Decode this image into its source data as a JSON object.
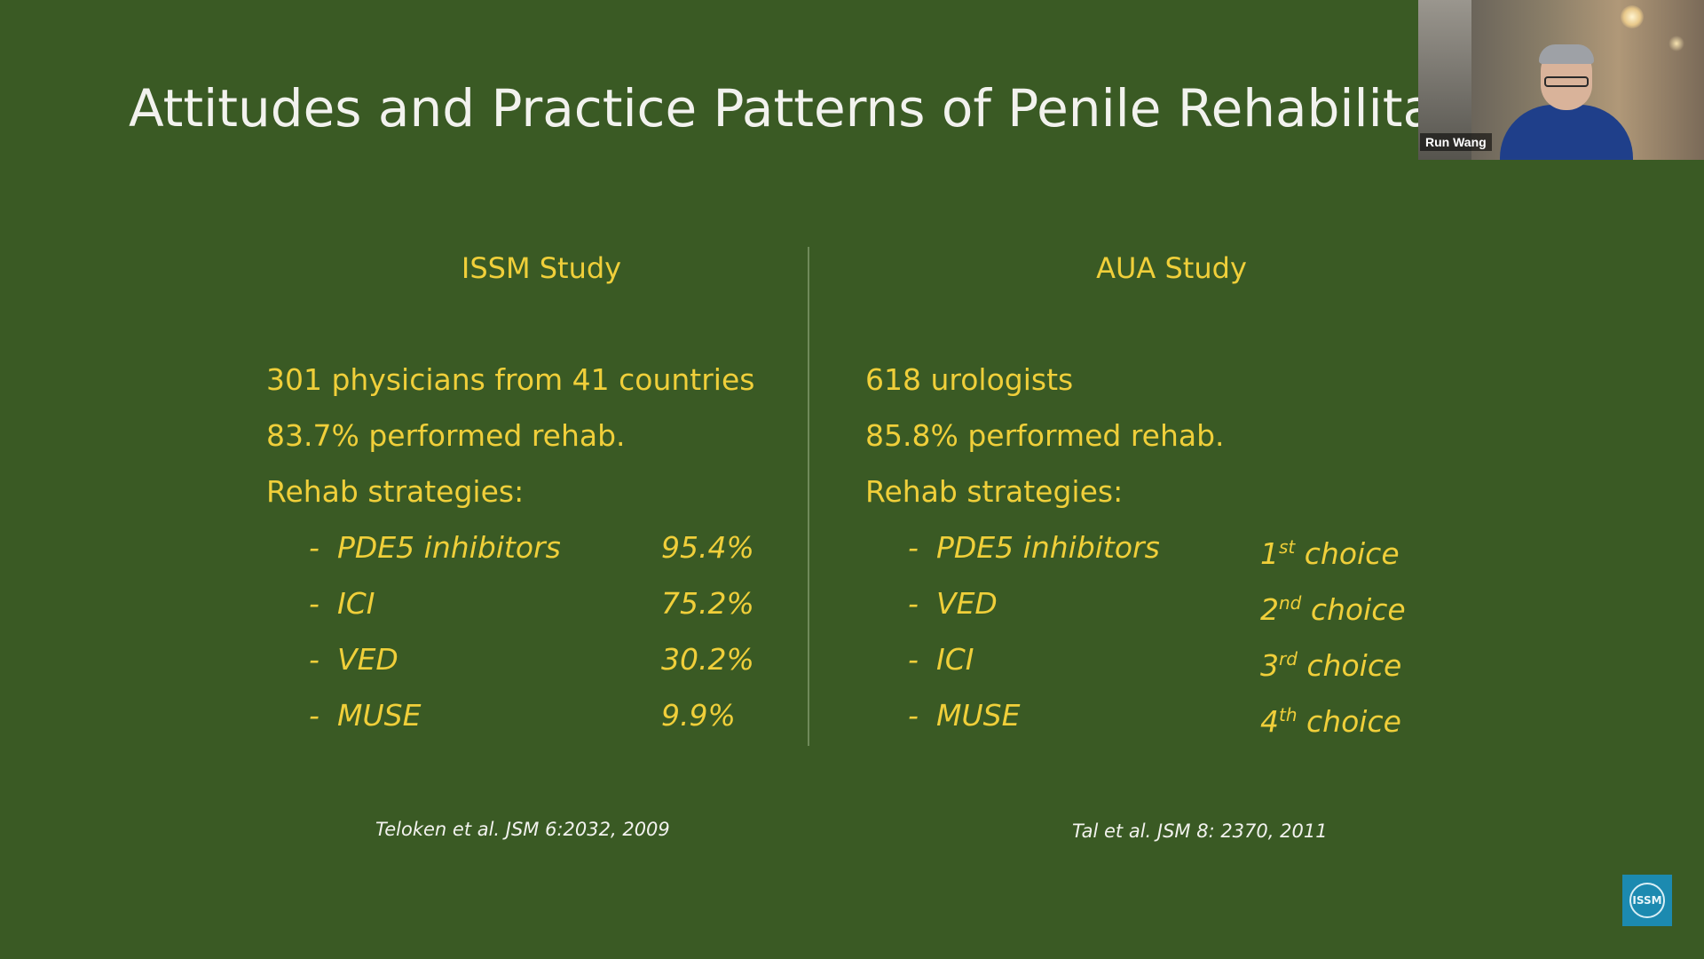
{
  "slide": {
    "title": "Attitudes and Practice Patterns of Penile Rehabilita",
    "left": {
      "heading": "ISSM Study",
      "stats": [
        "301 physicians from 41 countries",
        "83.7% performed rehab.",
        "Rehab strategies:"
      ],
      "strategies": [
        {
          "dash": "-",
          "name": "PDE5 inhibitors",
          "value": "95.4%"
        },
        {
          "dash": "-",
          "name": "ICI",
          "value": "75.2%"
        },
        {
          "dash": "-",
          "name": "VED",
          "value": "30.2%"
        },
        {
          "dash": "-",
          "name": "MUSE",
          "value": "9.9%"
        }
      ],
      "citation": "Teloken et al. JSM 6:2032, 2009"
    },
    "right": {
      "heading": "AUA Study",
      "stats": [
        "618 urologists",
        "85.8% performed rehab.",
        "Rehab strategies:"
      ],
      "strategies": [
        {
          "dash": "-",
          "name": "PDE5 inhibitors",
          "rank": "1",
          "suffix": "st",
          "label": " choice"
        },
        {
          "dash": "-",
          "name": "VED",
          "rank": "2",
          "suffix": "nd",
          "label": " choice"
        },
        {
          "dash": "-",
          "name": "ICI",
          "rank": "3",
          "suffix": "rd",
          "label": " choice"
        },
        {
          "dash": "-",
          "name": "MUSE",
          "rank": "4",
          "suffix": "th",
          "label": " choice"
        }
      ],
      "citation": "Tal et al. JSM 8: 2370, 2011"
    }
  },
  "video": {
    "participant_name": "Run Wang"
  },
  "logo": {
    "text": "ISSM"
  },
  "colors": {
    "background": "#3a5a24",
    "body_text": "#f0cf3a",
    "title_text": "#f2f2ee",
    "logo_bg": "#1c8ab0"
  }
}
